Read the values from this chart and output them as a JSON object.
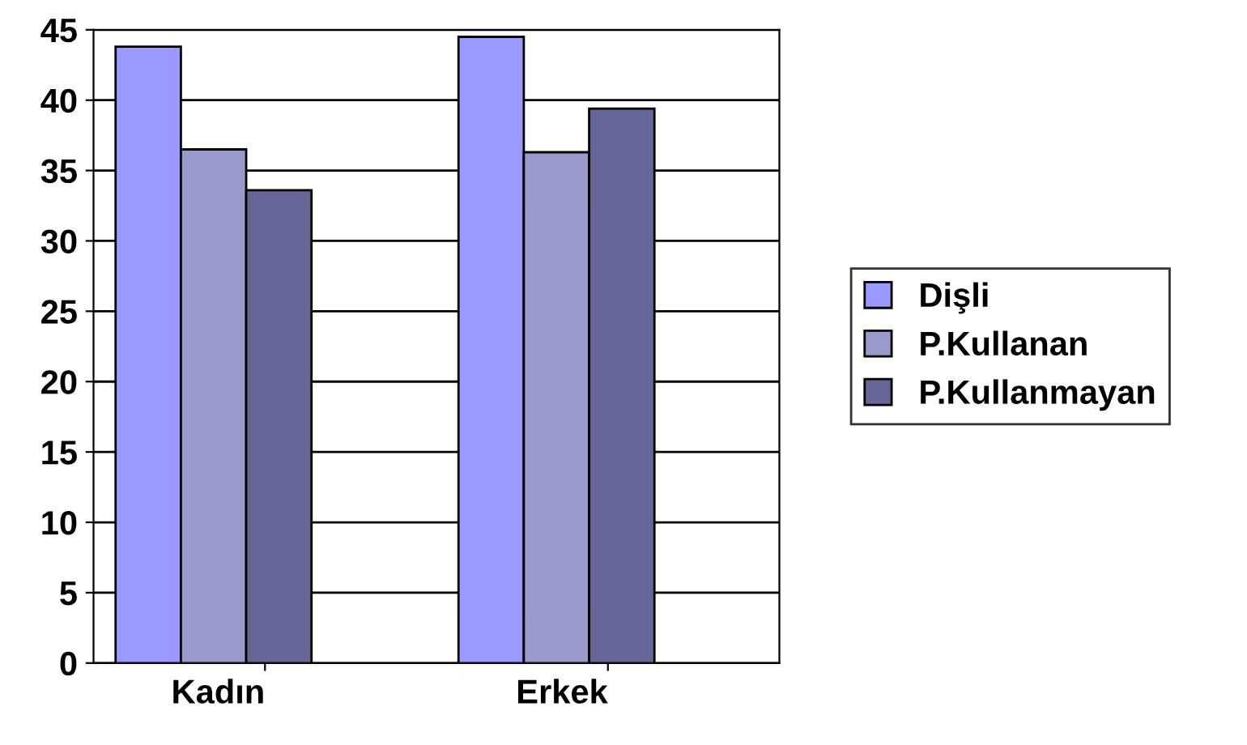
{
  "chart_data": {
    "type": "bar",
    "categories": [
      "Kadın",
      "Erkek"
    ],
    "series": [
      {
        "name": "Dişli",
        "color": "#9999ff",
        "values": [
          43.8,
          44.5
        ]
      },
      {
        "name": "P.Kullanan",
        "color": "#9999cc",
        "values": [
          36.5,
          36.3
        ]
      },
      {
        "name": "P.Kullanmayan",
        "color": "#666699",
        "values": [
          33.6,
          39.4
        ]
      }
    ],
    "ylim": [
      0,
      45
    ],
    "yticks": [
      0,
      5,
      10,
      15,
      20,
      25,
      30,
      35,
      40,
      45
    ],
    "grid": "y",
    "legend": "right"
  }
}
